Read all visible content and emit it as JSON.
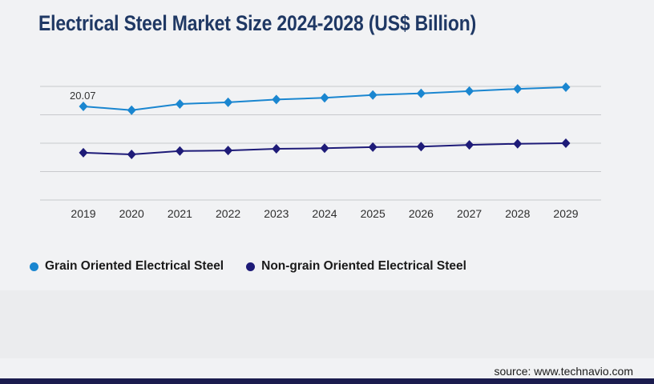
{
  "title": "Electrical Steel Market Size 2024-2028 (US$ Billion)",
  "source": "source: www.technavio.com",
  "colors": {
    "title": "#1f3864",
    "background": "#f1f2f4",
    "band": "#ebecee",
    "gridline": "#c8c9cc",
    "axis_label": "#2e2e2e",
    "data_label": "#333333",
    "legend_text": "#1a1a1a",
    "footer_bar": "#1b1c4e",
    "series_grain": "#1a86d0",
    "series_nongrain": "#1e1b78"
  },
  "chart_data": {
    "type": "line",
    "title": "Electrical Steel Market Size 2024-2028 (US$ Billion)",
    "x": [
      "2019",
      "2020",
      "2021",
      "2022",
      "2023",
      "2024",
      "2025",
      "2026",
      "2027",
      "2028",
      "2029"
    ],
    "series": [
      {
        "name": "Grain Oriented Electrical Steel",
        "color": "#1a86d0",
        "marker": "diamond",
        "values": [
          20.07,
          19.4,
          20.5,
          20.8,
          21.3,
          21.6,
          22.1,
          22.4,
          22.8,
          23.2,
          23.5
        ]
      },
      {
        "name": "Non-grain Oriented Electrical Steel",
        "color": "#1e1b78",
        "marker": "diamond",
        "values": [
          11.8,
          11.5,
          12.1,
          12.2,
          12.5,
          12.6,
          12.8,
          12.9,
          13.2,
          13.4,
          13.5
        ]
      }
    ],
    "data_labels": [
      {
        "series": 0,
        "index": 0,
        "text": "20.07"
      }
    ],
    "xlabel": "",
    "ylabel": "",
    "grid": "horizontal",
    "gridline_count": 5,
    "legend_position": "bottom-left"
  },
  "legend": {
    "items": [
      {
        "label": "Grain Oriented Electrical Steel",
        "color": "#1a86d0"
      },
      {
        "label": "Non-grain Oriented Electrical Steel",
        "color": "#1e1b78"
      }
    ]
  }
}
